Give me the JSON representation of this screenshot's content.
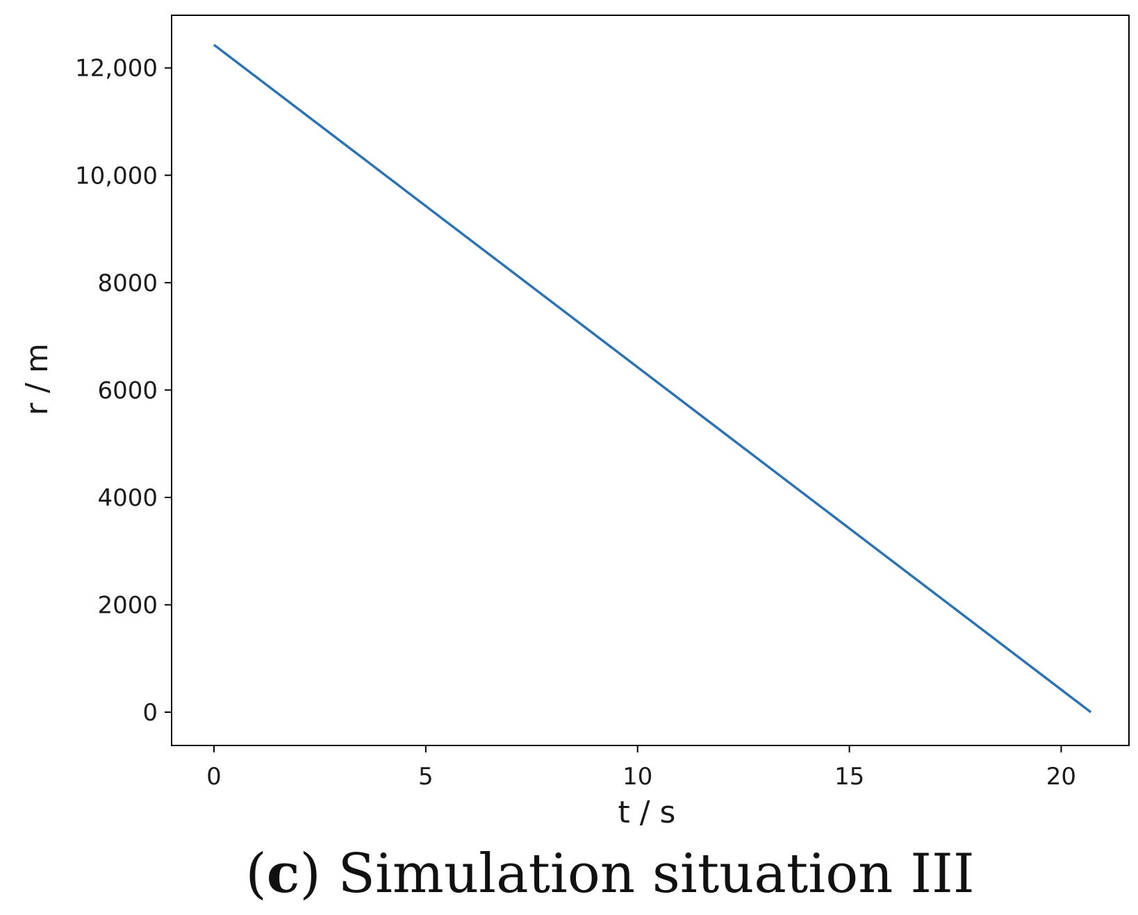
{
  "chart_data": {
    "type": "line",
    "title": "",
    "xlabel": "t / s",
    "ylabel": "r / m",
    "xlim": [
      -1,
      21.6
    ],
    "ylim": [
      -620,
      12980
    ],
    "grid": false,
    "x_ticks": [
      0,
      5,
      10,
      15,
      20
    ],
    "y_ticks": [
      0,
      2000,
      4000,
      6000,
      8000,
      10000,
      12000
    ],
    "x_tick_labels": [
      "0",
      "5",
      "10",
      "15",
      "20"
    ],
    "y_tick_labels": [
      "0",
      "2000",
      "4000",
      "6000",
      "8000",
      "10,000",
      "12,000"
    ],
    "series": [
      {
        "color": "#2b73b3",
        "x": [
          0,
          20.7
        ],
        "y": [
          12430,
          0
        ]
      }
    ]
  },
  "caption": {
    "label": "c",
    "open_paren": "(",
    "close_paren": ")",
    "text": " Simulation situation III"
  }
}
